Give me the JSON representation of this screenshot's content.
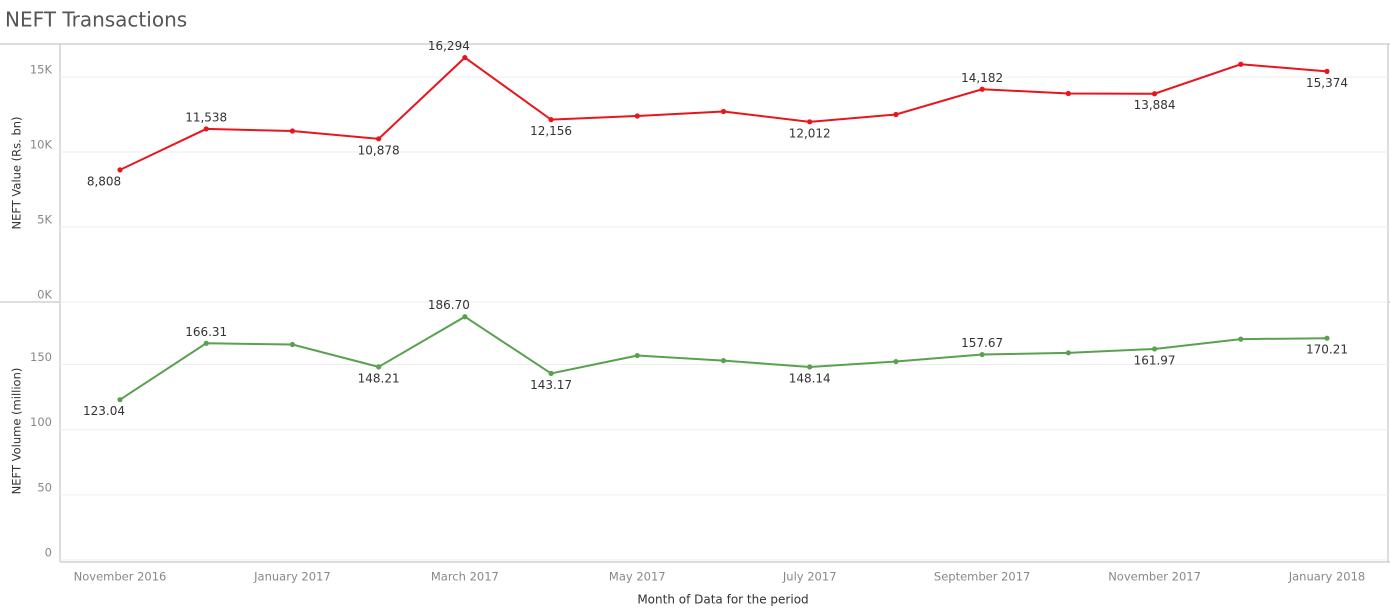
{
  "title": "NEFT Transactions",
  "x_axis": {
    "label": "Month of Data for the period",
    "categories": [
      "November 2016",
      null,
      "January 2017",
      null,
      "March 2017",
      null,
      "May 2017",
      null,
      "July 2017",
      null,
      "September 2017",
      null,
      "November 2017",
      null,
      "January 2018"
    ]
  },
  "chart_data": [
    {
      "type": "line",
      "ylabel": "NEFT Value (Rs. bn)",
      "color": "#e8161c",
      "ylim": [
        0,
        17200
      ],
      "yticks": [
        {
          "value": 0,
          "label": "0K"
        },
        {
          "value": 5000,
          "label": "5K"
        },
        {
          "value": 10000,
          "label": "10K"
        },
        {
          "value": 15000,
          "label": "15K"
        }
      ],
      "grid": true,
      "values": [
        8808,
        11538,
        11400,
        10878,
        16294,
        12156,
        12400,
        12700,
        12012,
        12500,
        14182,
        13900,
        13884,
        15850,
        15374
      ],
      "value_labels": [
        "8,808",
        "11,538",
        null,
        "10,878",
        "16,294",
        "12,156",
        null,
        null,
        "12,012",
        null,
        "14,182",
        null,
        "13,884",
        null,
        "15,374"
      ]
    },
    {
      "type": "line",
      "ylabel": "NEFT Volume (million)",
      "color": "#59a14f",
      "ylim": [
        0,
        198
      ],
      "yticks": [
        0,
        50,
        100,
        150
      ],
      "grid": true,
      "values": [
        123.04,
        166.31,
        165.4,
        148.21,
        186.7,
        143.17,
        156.9,
        153,
        148.14,
        152.3,
        157.67,
        159,
        161.97,
        169.5,
        170.21
      ],
      "value_labels": [
        "123.04",
        "166.31",
        null,
        "148.21",
        "186.70",
        "143.17",
        null,
        null,
        "148.14",
        null,
        "157.67",
        null,
        "161.97",
        null,
        "170.21"
      ]
    }
  ]
}
